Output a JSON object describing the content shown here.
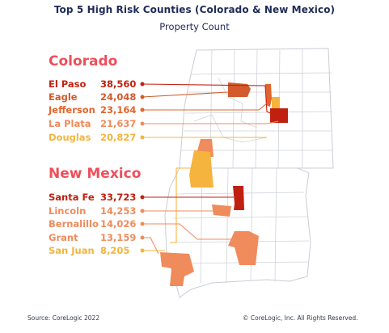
{
  "header": {
    "title": "Top 5 High Risk Counties (Colorado & New Mexico)",
    "subtitle": "Property Count"
  },
  "colorado": {
    "label": "Colorado",
    "counties": [
      {
        "name": "El Paso",
        "count": "38,560",
        "color": "#c0200f"
      },
      {
        "name": "Eagle",
        "count": "24,048",
        "color": "#d25a2c"
      },
      {
        "name": "Jefferson",
        "count": "23,164",
        "color": "#e0652e"
      },
      {
        "name": "La Plata",
        "count": "21,637",
        "color": "#f08b5c"
      },
      {
        "name": "Douglas",
        "count": "20,827",
        "color": "#f5b43d"
      }
    ]
  },
  "new_mexico": {
    "label": "New Mexico",
    "counties": [
      {
        "name": "Santa Fe",
        "count": "33,723",
        "color": "#c0200f"
      },
      {
        "name": "Lincoln",
        "count": "14,253",
        "color": "#f08b5c"
      },
      {
        "name": "Bernalillo",
        "count": "14,026",
        "color": "#f08b5c"
      },
      {
        "name": "Grant",
        "count": "13,159",
        "color": "#f08b5c"
      },
      {
        "name": "San Juan",
        "count": "8,205",
        "color": "#f5b43d"
      }
    ]
  },
  "footer": {
    "source": "Source: CoreLogic 2022",
    "copyright": "© CoreLogic, Inc. All Rights Reserved."
  },
  "colors": {
    "title": "#1f2b57",
    "state_label": "#ee4f5a",
    "boundary": "#c9cdd4"
  }
}
